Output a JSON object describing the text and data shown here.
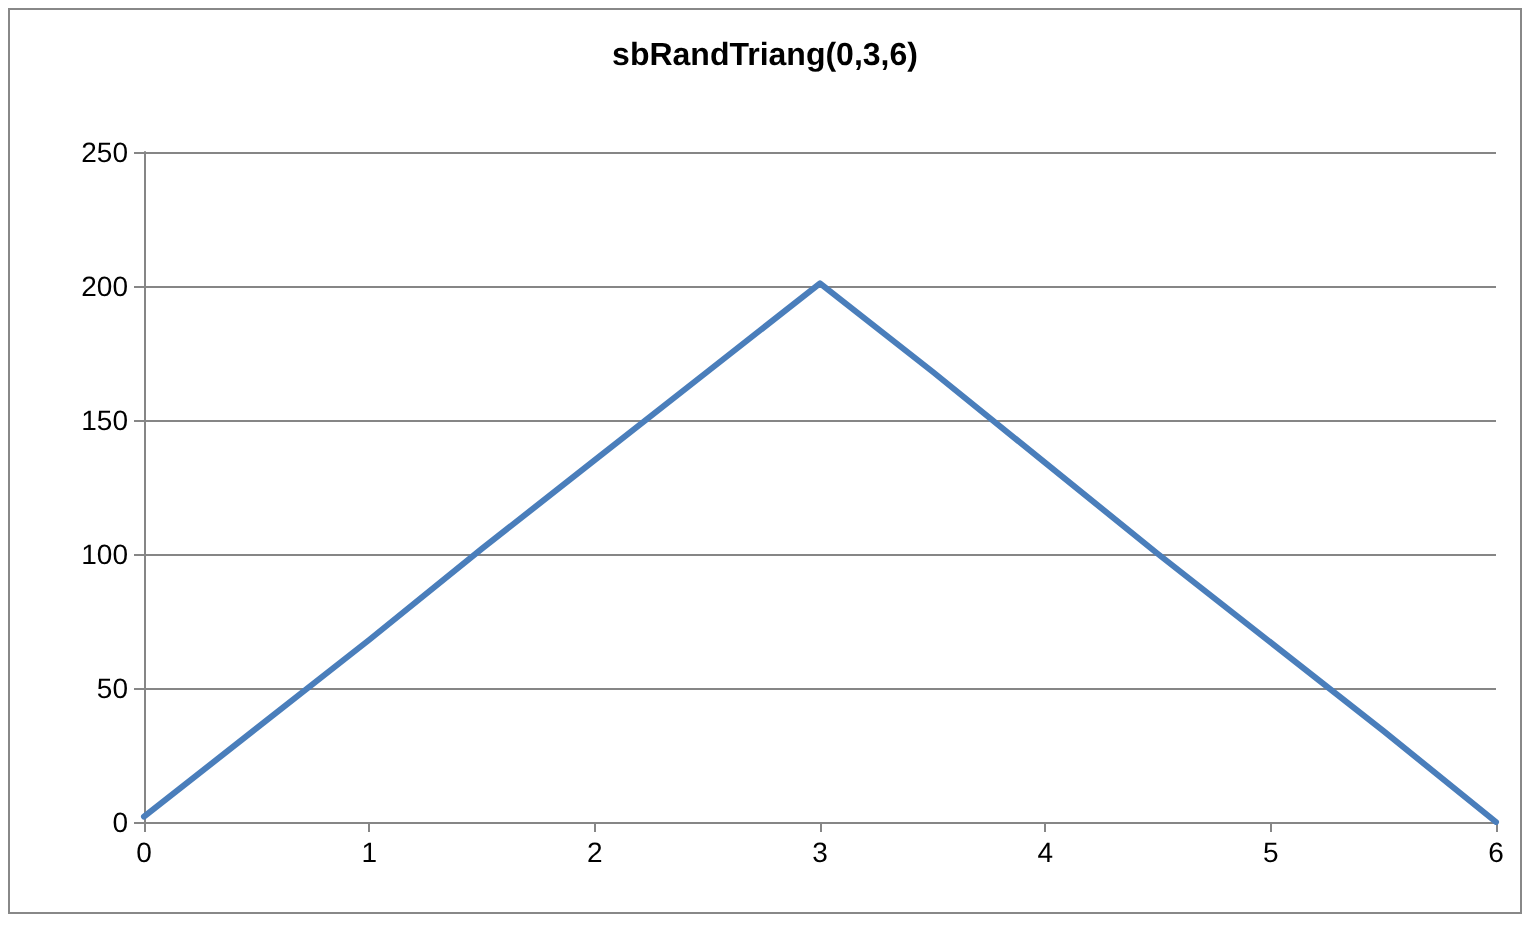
{
  "chart_data": {
    "type": "line",
    "title": "sbRandTriang(0,3,6)",
    "x": [
      0,
      0.5,
      1,
      1.5,
      2,
      2.5,
      3,
      3.5,
      4,
      4.5,
      5,
      5.5,
      6
    ],
    "series": [
      {
        "color": "#4a7ebb",
        "values": [
          2,
          35,
          68,
          102,
          135,
          168,
          201,
          168,
          134,
          100,
          67,
          34,
          0
        ]
      }
    ],
    "xlim": [
      0,
      6
    ],
    "xticks": [
      0,
      1,
      2,
      3,
      4,
      5,
      6
    ],
    "ylim": [
      0,
      250
    ],
    "yticks": [
      0,
      50,
      100,
      150,
      200,
      250
    ],
    "grid": "y",
    "marker": "none",
    "line_style": "solid"
  }
}
